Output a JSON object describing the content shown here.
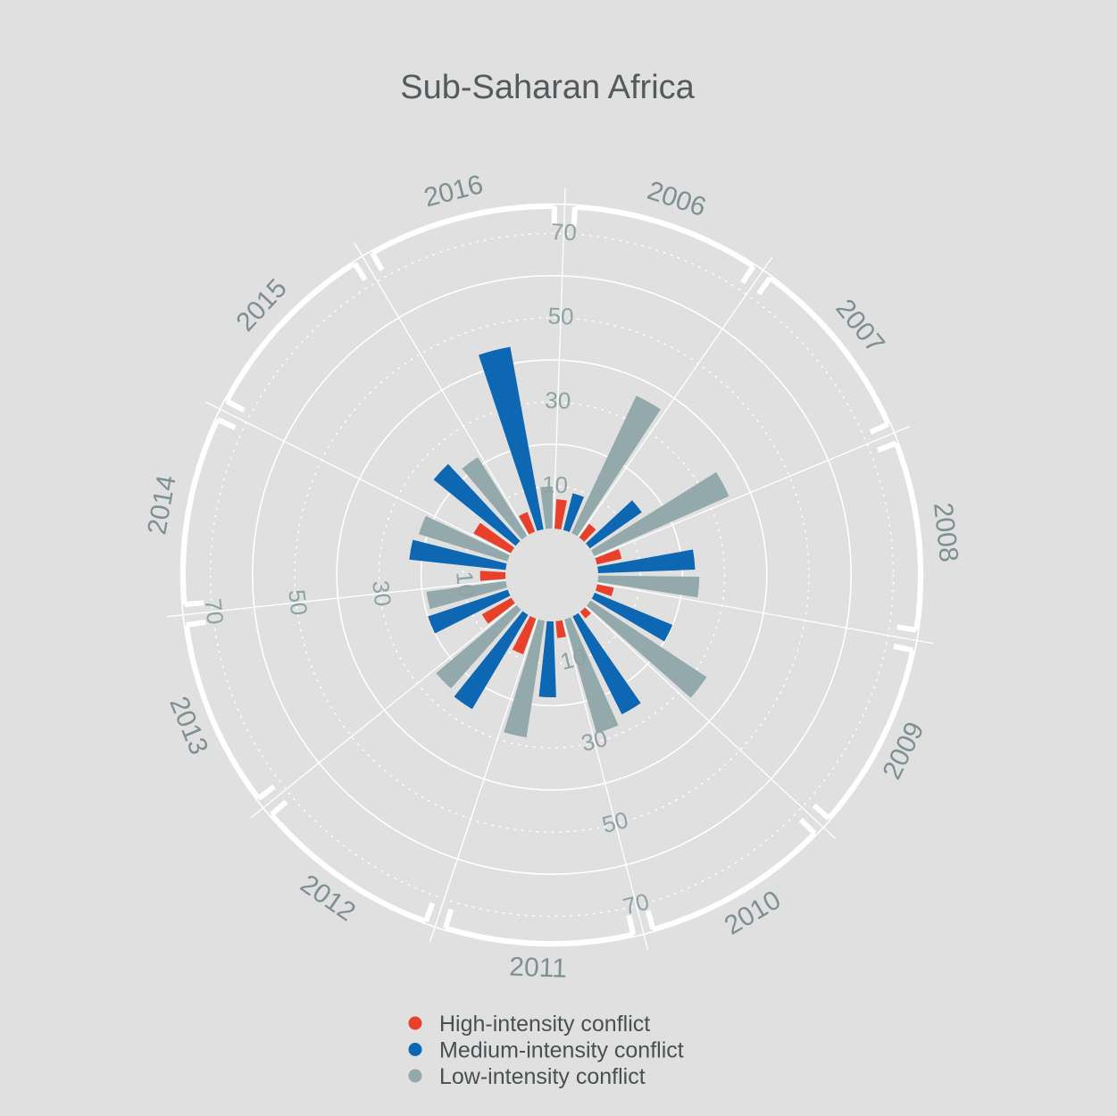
{
  "chart_data": {
    "type": "polar-bar",
    "title": "Sub-Saharan Africa",
    "categories": [
      "2006",
      "2007",
      "2008",
      "2009",
      "2010",
      "2011",
      "2012",
      "2013",
      "2014",
      "2015",
      "2016"
    ],
    "series": [
      {
        "name": "High-intensity conflict",
        "color": "#e8402a",
        "values": [
          7,
          4,
          6,
          4,
          2,
          4,
          9,
          8,
          6,
          10,
          5
        ]
      },
      {
        "name": "Medium-intensity conflict",
        "color": "#0d67b2",
        "values": [
          9,
          15,
          23,
          20,
          26,
          18,
          26,
          20,
          23,
          25,
          44
        ]
      },
      {
        "name": "Low-intensity conflict",
        "color": "#94a9ab",
        "values": [
          36,
          35,
          24,
          33,
          28,
          28,
          25,
          19,
          22,
          22,
          10
        ]
      }
    ],
    "radial_ticks": [
      10,
      30,
      50,
      70
    ],
    "rlim": [
      0,
      77
    ],
    "grid": true,
    "legend_position": "bottom"
  }
}
